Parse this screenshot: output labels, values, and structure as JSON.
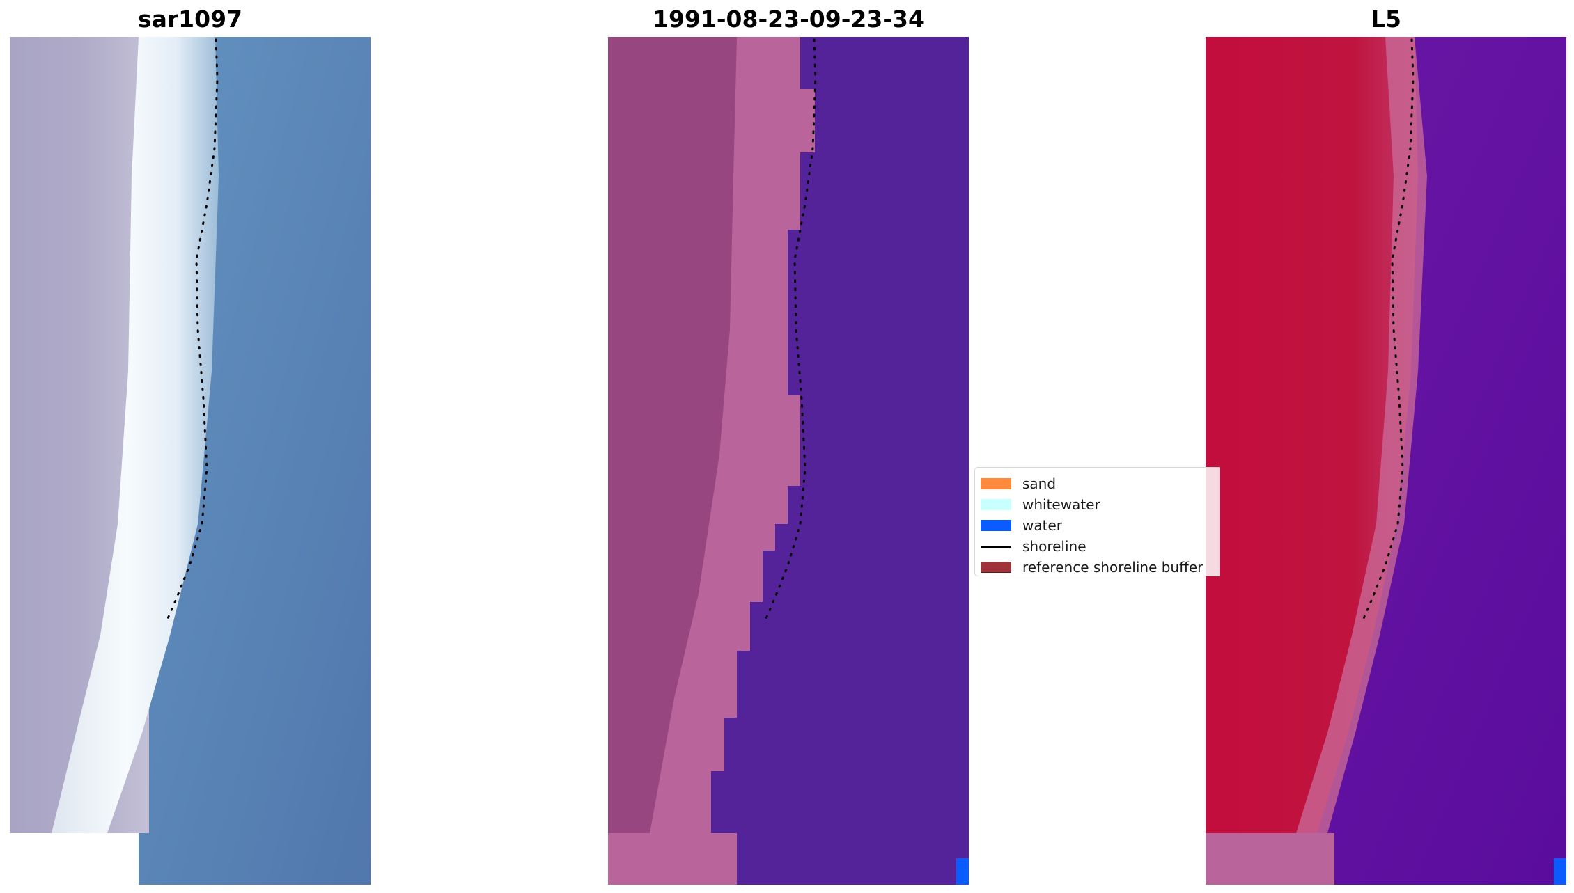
{
  "panels": [
    {
      "title": "sar1097"
    },
    {
      "title": "1991-08-23-09-23-34"
    },
    {
      "title": "L5"
    }
  ],
  "legend": {
    "items": [
      {
        "label": "sand",
        "kind": "patch",
        "color": "#ff8a3d"
      },
      {
        "label": "whitewater",
        "kind": "patch",
        "color": "#c8ffff"
      },
      {
        "label": "water",
        "kind": "patch",
        "color": "#0b5cff"
      },
      {
        "label": "shoreline",
        "kind": "line",
        "color": "#000000"
      },
      {
        "label": "reference shoreline buffer",
        "kind": "patch",
        "color": "#a0333a"
      }
    ]
  },
  "colors": {
    "rgb_sand": "#a9a6c6",
    "rgb_whitewater": "#f4f8fb",
    "rgb_water": "#5b86b7",
    "class_land": "#974680",
    "class_beach": "#b9649a",
    "class_water": "#542299",
    "class_water_pixel": "#0b5cff",
    "index_land": "#c01040",
    "index_water": "#5e10a0"
  }
}
